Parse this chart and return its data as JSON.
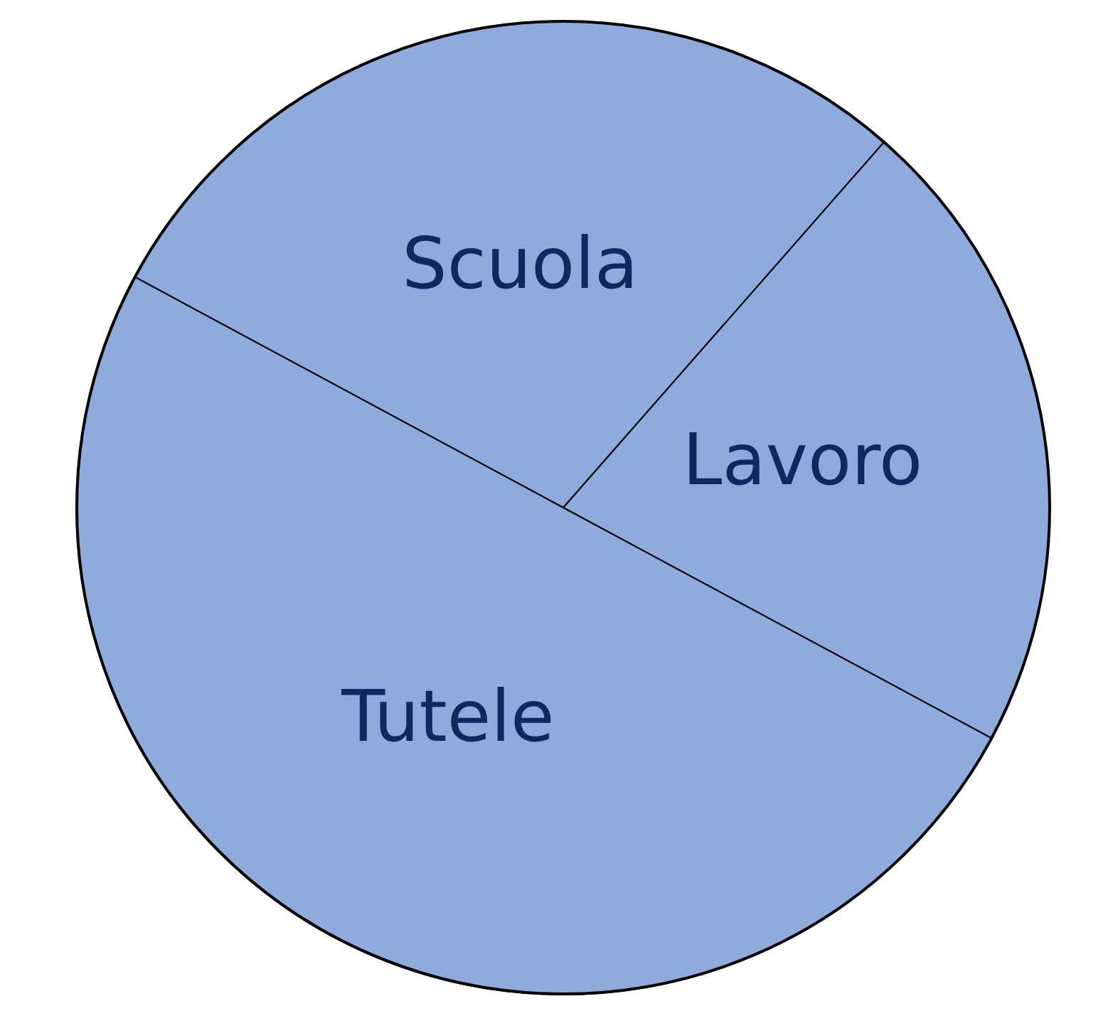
{
  "chart_data": {
    "type": "pie",
    "categories": [
      "Scuola",
      "Lavoro",
      "Tutele"
    ],
    "values": [
      28.6,
      21.4,
      50
    ],
    "colors": [
      "#8faadc",
      "#8faadc",
      "#8faadc"
    ]
  }
}
